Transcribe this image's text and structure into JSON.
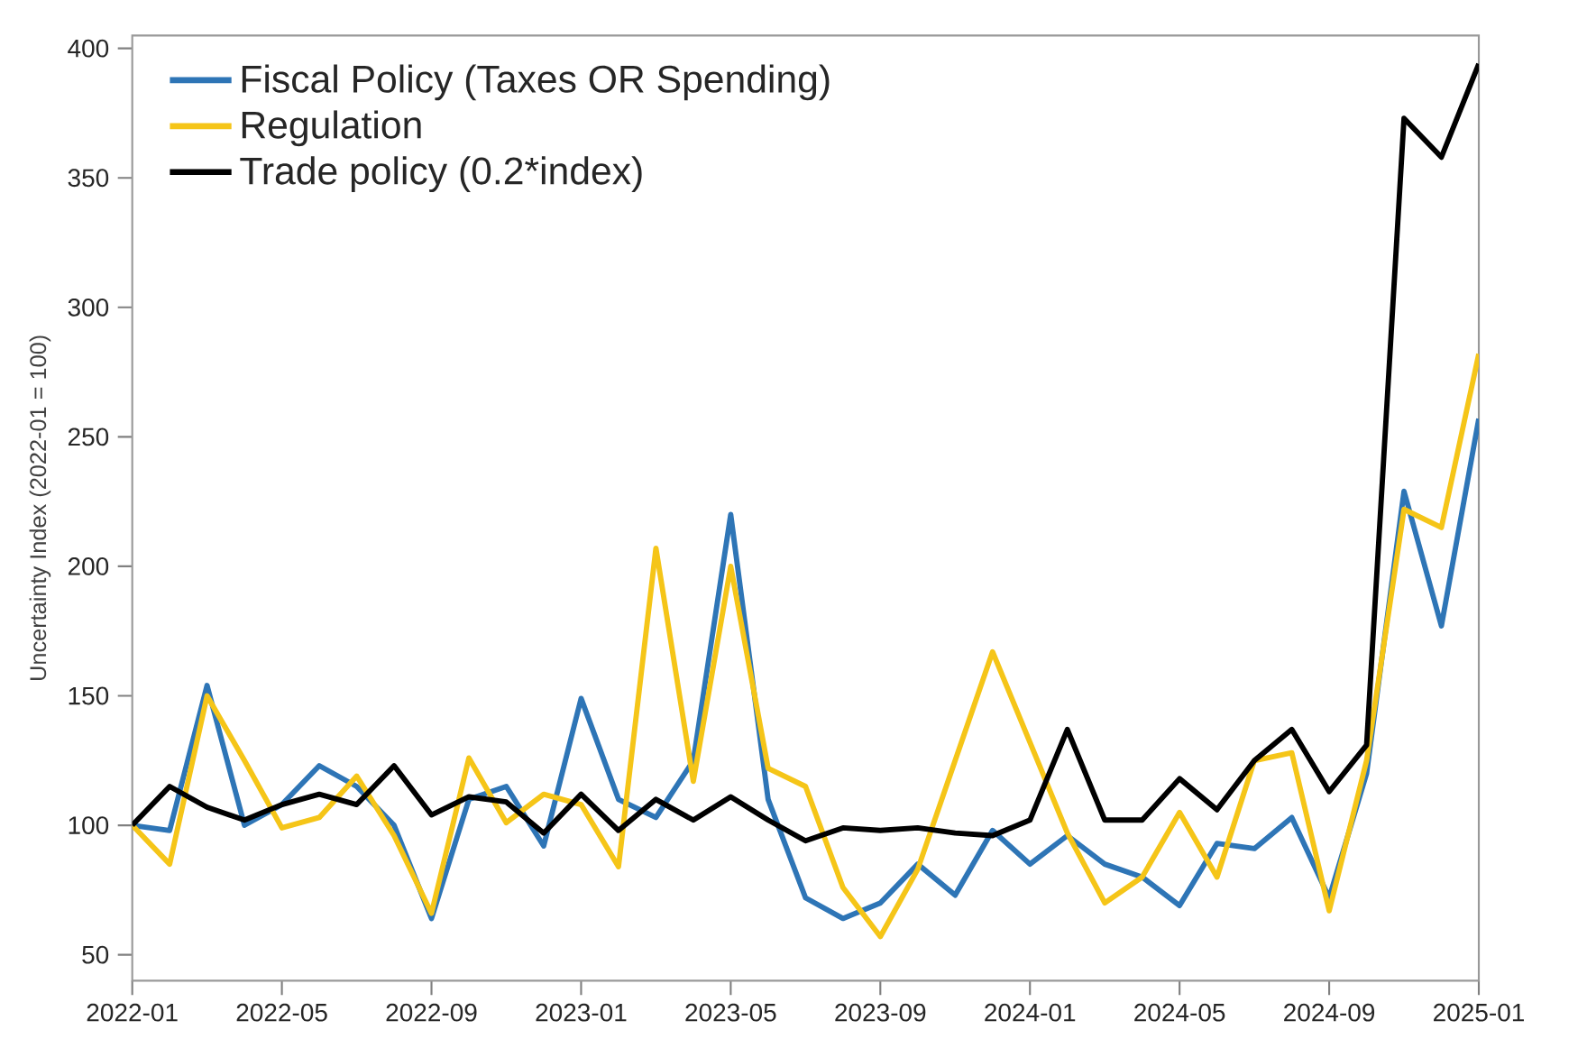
{
  "chart_data": {
    "type": "line",
    "ylabel": "Uncertainty Index (2022-01 = 100)",
    "x": [
      "2022-01",
      "2022-02",
      "2022-03",
      "2022-04",
      "2022-05",
      "2022-06",
      "2022-07",
      "2022-08",
      "2022-09",
      "2022-10",
      "2022-11",
      "2022-12",
      "2023-01",
      "2023-02",
      "2023-03",
      "2023-04",
      "2023-05",
      "2023-06",
      "2023-07",
      "2023-08",
      "2023-09",
      "2023-10",
      "2023-11",
      "2023-12",
      "2024-01",
      "2024-02",
      "2024-03",
      "2024-04",
      "2024-05",
      "2024-06",
      "2024-07",
      "2024-08",
      "2024-09",
      "2024-10",
      "2024-11",
      "2024-12",
      "2025-01"
    ],
    "series": [
      {
        "name": "Fiscal Policy (Taxes OR Spending)",
        "color": "#2e75b6",
        "values": [
          100,
          98,
          154,
          100,
          108,
          123,
          115,
          100,
          64,
          110,
          115,
          92,
          149,
          110,
          103,
          125,
          220,
          110,
          72,
          64,
          70,
          85,
          73,
          98,
          85,
          96,
          85,
          80,
          69,
          93,
          91,
          103,
          72,
          120,
          229,
          177,
          257
        ]
      },
      {
        "name": "Regulation",
        "color": "#f5c518",
        "values": [
          100,
          85,
          150,
          125,
          99,
          103,
          119,
          96,
          66,
          126,
          101,
          112,
          108,
          84,
          207,
          117,
          200,
          122,
          115,
          76,
          57,
          83,
          125,
          167,
          132,
          97,
          70,
          80,
          105,
          80,
          125,
          128,
          67,
          125,
          222,
          215,
          282
        ]
      },
      {
        "name": "Trade policy (0.2*index)",
        "color": "#000000",
        "values": [
          100,
          115,
          107,
          102,
          108,
          112,
          108,
          123,
          104,
          111,
          109,
          97,
          112,
          98,
          110,
          102,
          111,
          102,
          94,
          99,
          98,
          99,
          97,
          96,
          102,
          137,
          102,
          102,
          118,
          106,
          125,
          137,
          113,
          131,
          373,
          358,
          394
        ]
      }
    ],
    "xlim": [
      "2022-01",
      "2025-01"
    ],
    "xticks": [
      "2022-01",
      "2022-05",
      "2022-09",
      "2023-01",
      "2023-05",
      "2023-09",
      "2024-01",
      "2024-05",
      "2024-09",
      "2025-01"
    ],
    "ylim": [
      40,
      405
    ],
    "yticks": [
      50,
      100,
      150,
      200,
      250,
      300,
      350,
      400
    ],
    "grid": false,
    "legend": "top left",
    "marker": "none",
    "line_style": "solid"
  }
}
